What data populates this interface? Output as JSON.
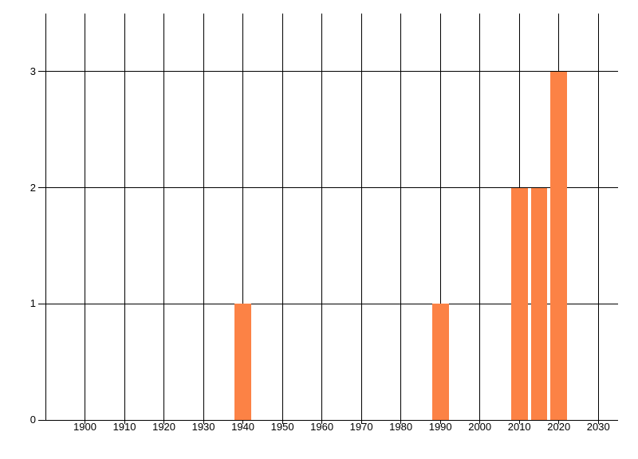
{
  "chart_data": {
    "type": "bar",
    "title": "",
    "xlabel": "",
    "ylabel": "",
    "x": [
      1940,
      1990,
      2010,
      2015,
      2020
    ],
    "values": [
      1,
      1,
      2,
      2,
      3
    ],
    "bar_width_years": 4.2,
    "xlim": [
      1890,
      2035
    ],
    "ylim": [
      0,
      3.5
    ],
    "x_grid_step": 10,
    "x_tick_labels": [
      "1900",
      "1910",
      "1920",
      "1930",
      "1940",
      "1950",
      "1960",
      "1970",
      "1980",
      "1990",
      "2000",
      "2010",
      "2020",
      "2030"
    ],
    "y_tick_labels": [
      "0",
      "1",
      "2",
      "3"
    ],
    "grid": true,
    "legend_position": "none",
    "colors": {
      "bar": "#fc8245",
      "grid": "#000000",
      "axis": "#000000",
      "text": "#000000",
      "background": "#ffffff"
    }
  }
}
